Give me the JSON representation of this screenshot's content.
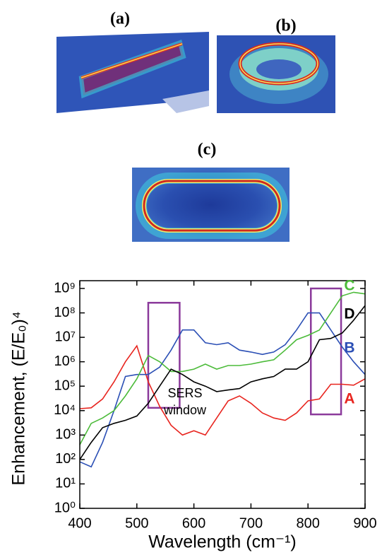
{
  "panels": [
    {
      "label": "(a)"
    },
    {
      "label": "(b)"
    },
    {
      "label": "(c)"
    }
  ],
  "chart_data": {
    "type": "line",
    "x": [
      400,
      420,
      440,
      460,
      480,
      500,
      520,
      540,
      560,
      580,
      600,
      620,
      640,
      660,
      680,
      700,
      720,
      740,
      760,
      780,
      800,
      820,
      840,
      860,
      880,
      900
    ],
    "series": [
      {
        "name": "A",
        "color": "#e8251f",
        "values": [
          12000,
          13000,
          30000,
          150000,
          1000000,
          4500000,
          150000,
          15000,
          2500,
          1000,
          1500,
          1000,
          5000,
          25000,
          40000,
          20000,
          8000,
          5000,
          4000,
          8000,
          25000,
          30000,
          120000,
          120000,
          110000,
          200000
        ]
      },
      {
        "name": "B",
        "color": "#2b4fb5",
        "values": [
          80,
          50,
          500,
          10000,
          250000,
          300000,
          300000,
          600000,
          3000000,
          20000000,
          20000000,
          6000000,
          5000000,
          6000000,
          3000000,
          2500000,
          2000000,
          2500000,
          5000000,
          20000000,
          100000000,
          100000000,
          20000000,
          4000000,
          1000000,
          300000
        ]
      },
      {
        "name": "C",
        "color": "#4cbb3a",
        "values": [
          400,
          3000,
          5000,
          10000,
          40000,
          200000,
          1800000,
          1000000,
          400000,
          400000,
          500000,
          800000,
          500000,
          700000,
          700000,
          800000,
          1000000,
          1200000,
          3000000,
          8000000,
          12000000,
          20000000,
          100000000,
          500000000,
          700000000,
          600000000
        ]
      },
      {
        "name": "D",
        "color": "#000000",
        "values": [
          100,
          500,
          2000,
          3000,
          4000,
          6000,
          20000,
          100000,
          500000,
          300000,
          150000,
          100000,
          60000,
          70000,
          80000,
          150000,
          200000,
          250000,
          500000,
          500000,
          1000000,
          8000000,
          9000000,
          15000000,
          50000000,
          200000000
        ]
      }
    ],
    "xlim": [
      400,
      900
    ],
    "ylim": [
      1,
      1000000000
    ],
    "log_y": true,
    "xticks": [
      400,
      500,
      600,
      700,
      800,
      900
    ],
    "yticks": [
      {
        "value": 1,
        "label": "10⁰"
      },
      {
        "value": 10,
        "label": "10¹"
      },
      {
        "value": 100,
        "label": "10²"
      },
      {
        "value": 1000,
        "label": "10³"
      },
      {
        "value": 10000,
        "label": "10⁴"
      },
      {
        "value": 100000,
        "label": "10⁵"
      },
      {
        "value": 1000000,
        "label": "10⁶"
      },
      {
        "value": 10000000,
        "label": "10⁷"
      },
      {
        "value": 100000000,
        "label": "10⁸"
      },
      {
        "value": 1000000000,
        "label": "10⁹"
      }
    ],
    "xlabel": "Wavelength (cm⁻¹)",
    "ylabel": "Enhancement, (E/E₀)⁴",
    "annotation_lines": [
      "SERS",
      "window"
    ],
    "highlight_boxes": [
      {
        "xlim": [
          520,
          575
        ],
        "ylim": [
          13000,
          260000000
        ],
        "color": "#8b3a9b"
      },
      {
        "xlim": [
          805,
          858
        ],
        "ylim": [
          7000,
          1000000000
        ],
        "color": "#8b3a9b"
      }
    ]
  }
}
